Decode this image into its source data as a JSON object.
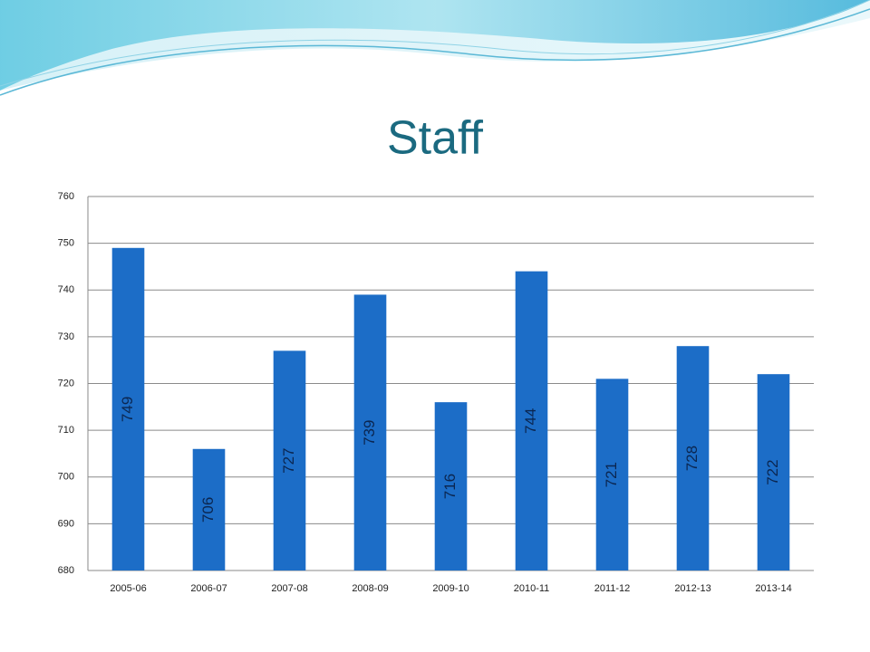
{
  "chart_data": {
    "type": "bar",
    "title": "Staff",
    "categories": [
      "2005-06",
      "2006-07",
      "2007-08",
      "2008-09",
      "2009-10",
      "2010-11",
      "2011-12",
      "2012-13",
      "2013-14"
    ],
    "values": [
      749,
      706,
      727,
      739,
      716,
      744,
      721,
      728,
      722
    ],
    "color": "#1c6dc7",
    "ylim": [
      680,
      760
    ],
    "yticks": [
      680,
      690,
      700,
      710,
      720,
      730,
      740,
      750,
      760
    ],
    "grid": true
  }
}
